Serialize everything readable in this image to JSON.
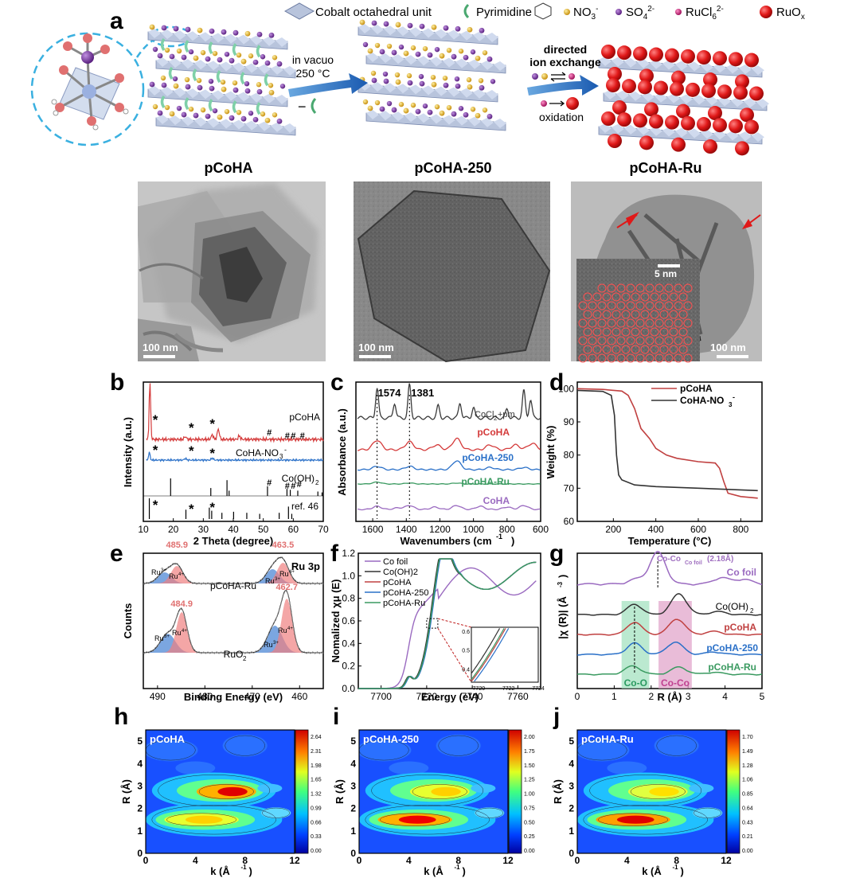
{
  "panels": {
    "a": {
      "label": "a",
      "legend": {
        "cobalt_unit": "Cobalt octahedral unit",
        "pyrimidine": "Pyrimidine",
        "no3": "NO",
        "no3_sup": "3",
        "no3_charge": "-",
        "so4": "SO",
        "so4_sub": "4",
        "so4_charge": "2-",
        "rucl6": "RuCl",
        "rucl6_sub": "6",
        "rucl6_charge": "2-",
        "ruox": "RuO",
        "ruox_sub": "x"
      },
      "step1": {
        "line1": "in vacuo",
        "line2": "250 °C",
        "minus": "−"
      },
      "step2": {
        "line1": "directed",
        "line2": "ion exchange",
        "oxidation": "oxidation"
      },
      "titles": [
        "pCoHA",
        "pCoHA-250",
        "pCoHA-Ru"
      ],
      "scale_bars": [
        "100 nm",
        "100 nm",
        "100 nm"
      ],
      "inset_scale": "5 nm",
      "colors": {
        "no3": "#e8b820",
        "so4": "#7a3fa0",
        "rucl6": "#d0157a",
        "ruox": "#e01818",
        "sheet": "#b8c4dc",
        "pyrimidine": "#8fd8b0"
      }
    },
    "b": {
      "label": "b"
    },
    "c": {
      "label": "c"
    },
    "d": {
      "label": "d"
    },
    "e": {
      "label": "e"
    },
    "f": {
      "label": "f"
    },
    "g": {
      "label": "g"
    },
    "h": {
      "label": "h"
    },
    "i": {
      "label": "i"
    },
    "j": {
      "label": "j"
    }
  },
  "chart_data": [
    {
      "id": "b",
      "type": "line",
      "xlabel": "2 Theta (degree)",
      "ylabel": "Intensity (a.u.)",
      "xlim": [
        10,
        70
      ],
      "xticks": [
        10,
        20,
        30,
        40,
        50,
        60,
        70
      ],
      "series": [
        {
          "name": "pCoHA",
          "color": "#d43a3a",
          "peaks": [
            [
              12.2,
              1.0
            ],
            [
              35,
              0.18
            ],
            [
              33,
              0.08
            ],
            [
              42,
              0.06
            ],
            [
              24,
              0.05
            ]
          ]
        },
        {
          "name": "CoHA-NO3-",
          "color": "#2a70c8",
          "peaks": [
            [
              12.0,
              0.25
            ],
            [
              24,
              0.05
            ],
            [
              33,
              0.06
            ]
          ]
        }
      ],
      "reference_sticks": [
        {
          "name": "Co(OH)2",
          "x": [
            19.1,
            32.5,
            37.9,
            38.6,
            51.4,
            57.9,
            59.0,
            61.5,
            68.2,
            69.6
          ],
          "h": [
            1,
            0.45,
            0.9,
            0.3,
            0.55,
            0.4,
            0.35,
            0.3,
            0.25,
            0.2
          ]
        },
        {
          "name": "ref. 46",
          "x": [
            12.0,
            24.2,
            32.0,
            32.8,
            36.2,
            40.1,
            44.5,
            48.8,
            55.3,
            58.4,
            59.5
          ],
          "h": [
            1,
            0.45,
            0.55,
            0.4,
            0.3,
            0.35,
            0.3,
            0.25,
            0.3,
            0.6,
            0.25
          ]
        }
      ],
      "labels": [
        "pCoHA",
        "CoHA-NO",
        "Co(OH)",
        "ref. 46"
      ],
      "markers_star": [
        "*",
        "*",
        "*"
      ],
      "markers_hash": [
        "#",
        "#",
        "#",
        "#"
      ]
    },
    {
      "id": "c",
      "type": "line",
      "xlabel": "Wavenumbers (cm",
      "xlabel_sup": "-1",
      "ylabel": "Absorbance (a.u.)",
      "xlim": [
        1700,
        600
      ],
      "xticks": [
        1600,
        1400,
        1200,
        1000,
        800,
        600
      ],
      "annotations": [
        "1574",
        "1381"
      ],
      "series": [
        {
          "name": "CoCl2+pm",
          "color": "#3a3a3a"
        },
        {
          "name": "pCoHA",
          "color": "#d43a3a"
        },
        {
          "name": "pCoHA-250",
          "color": "#2a70c8"
        },
        {
          "name": "pCoHA-Ru",
          "color": "#3a9a60"
        },
        {
          "name": "CoHA",
          "color": "#9a6ac0"
        }
      ]
    },
    {
      "id": "d",
      "type": "line",
      "xlabel": "Temperature (°C)",
      "ylabel": "Weight (%)",
      "xlim": [
        30,
        900
      ],
      "ylim": [
        60,
        100
      ],
      "xticks": [
        200,
        400,
        600,
        800
      ],
      "yticks": [
        60,
        70,
        80,
        90,
        100
      ],
      "series": [
        {
          "name": "pCoHA",
          "color": "#c04040",
          "points": [
            [
              30,
              100
            ],
            [
              150,
              99.8
            ],
            [
              240,
              99.3
            ],
            [
              270,
              98
            ],
            [
              300,
              94
            ],
            [
              330,
              88
            ],
            [
              370,
              85
            ],
            [
              400,
              82
            ],
            [
              450,
              80
            ],
            [
              500,
              79
            ],
            [
              600,
              78
            ],
            [
              680,
              77.6
            ],
            [
              700,
              76
            ],
            [
              720,
              72
            ],
            [
              740,
              68.5
            ],
            [
              800,
              67.5
            ],
            [
              880,
              67
            ]
          ]
        },
        {
          "name": "CoHA-NO3-",
          "color": "#333333",
          "points": [
            [
              30,
              99.5
            ],
            [
              150,
              99.2
            ],
            [
              190,
              98
            ],
            [
              205,
              92
            ],
            [
              215,
              80
            ],
            [
              225,
              74
            ],
            [
              240,
              72.5
            ],
            [
              300,
              71
            ],
            [
              400,
              70.5
            ],
            [
              600,
              70
            ],
            [
              880,
              69.3
            ]
          ]
        }
      ]
    },
    {
      "id": "e",
      "type": "line",
      "xlabel": "Binding Energy (eV)",
      "ylabel": "Counts",
      "xlim": [
        493,
        455
      ],
      "xticks": [
        490,
        480,
        470,
        460
      ],
      "title": "Ru 3p",
      "annotations": [
        "485.9",
        "463.5",
        "484.9",
        "462.7",
        "Ru",
        "Ru",
        "Ru",
        "Ru",
        "Ru",
        "Ru",
        "Ru",
        "Ru"
      ],
      "samples": [
        "pCoHA-Ru",
        "RuO2"
      ]
    },
    {
      "id": "f",
      "type": "line",
      "xlabel": "Energy (eV)",
      "ylabel": "Nomalized χμ (E)",
      "xlim": [
        7690,
        7770
      ],
      "ylim": [
        0,
        1.2
      ],
      "xticks": [
        7700,
        7720,
        7740,
        7760
      ],
      "yticks": [
        0.0,
        0.2,
        0.4,
        0.6,
        0.8,
        1.0,
        1.2
      ],
      "inset": {
        "xlim": [
          7719.5,
          7724
        ],
        "ylim": [
          0.33,
          0.62
        ],
        "xticks": [
          7720,
          7722,
          7724
        ],
        "yticks": [
          0.4,
          0.5,
          0.6
        ]
      },
      "series": [
        {
          "name": "Co foil",
          "color": "#9a6ac0"
        },
        {
          "name": "Co(OH)2",
          "color": "#333333"
        },
        {
          "name": "pCoHA",
          "color": "#c04040"
        },
        {
          "name": "pCoHA-250",
          "color": "#2a70c8"
        },
        {
          "name": "pCoHA-Ru",
          "color": "#3a9a60"
        }
      ]
    },
    {
      "id": "g",
      "type": "line",
      "xlabel": "R (Å)",
      "ylabel": "|χ (R)| (Å",
      "ylabel_sup": "-3",
      "xlim": [
        0,
        5
      ],
      "xticks": [
        0,
        1,
        2,
        3,
        4,
        5
      ],
      "annotations": [
        "Co-Co",
        "Co foil",
        "(2.18Å)",
        "Co-O",
        "Co-Co"
      ],
      "series": [
        {
          "name": "Co foil",
          "color": "#9a6ac0"
        },
        {
          "name": "Co(OH)2",
          "color": "#333333"
        },
        {
          "name": "pCoHA",
          "color": "#c04040"
        },
        {
          "name": "pCoHA-250",
          "color": "#2a70c8"
        },
        {
          "name": "pCoHA-Ru",
          "color": "#3a9a60"
        }
      ]
    },
    {
      "id": "h",
      "type": "heatmap",
      "title": "pCoHA",
      "xlabel": "k (Å",
      "xlabel_sup": "-1",
      "ylabel": "R (Å)",
      "xlim": [
        0,
        12
      ],
      "ylim": [
        0,
        5.5
      ],
      "xticks": [
        0,
        4,
        8,
        12
      ],
      "yticks": [
        0,
        1,
        2,
        3,
        4,
        5
      ],
      "colorbar": [
        "2.64",
        "2.31",
        "1.98",
        "1.65",
        "1.32",
        "0.99",
        "0.66",
        "0.33",
        "0.00"
      ]
    },
    {
      "id": "i",
      "type": "heatmap",
      "title": "pCoHA-250",
      "xlabel": "k (Å",
      "xlabel_sup": "-1",
      "ylabel": "R (Å)",
      "xlim": [
        0,
        12
      ],
      "ylim": [
        0,
        5.5
      ],
      "xticks": [
        0,
        4,
        8,
        12
      ],
      "yticks": [
        0,
        1,
        2,
        3,
        4,
        5
      ],
      "colorbar": [
        "2.00",
        "1.75",
        "1.50",
        "1.25",
        "1.00",
        "0.75",
        "0.50",
        "0.25",
        "0.00"
      ]
    },
    {
      "id": "j",
      "type": "heatmap",
      "title": "pCoHA-Ru",
      "xlabel": "k (Å",
      "xlabel_sup": "-1",
      "ylabel": "R (Å)",
      "xlim": [
        0,
        12
      ],
      "ylim": [
        0,
        5.5
      ],
      "xticks": [
        0,
        4,
        8,
        12
      ],
      "yticks": [
        0,
        1,
        2,
        3,
        4,
        5
      ],
      "colorbar": [
        "1.70",
        "1.49",
        "1.28",
        "1.06",
        "0.85",
        "0.64",
        "0.43",
        "0.21",
        "0.00"
      ]
    }
  ]
}
